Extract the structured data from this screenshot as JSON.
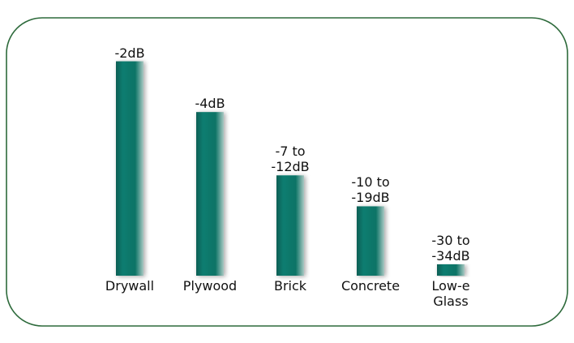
{
  "chart_data": {
    "type": "bar",
    "categories": [
      "Drywall",
      "Plywood",
      "Brick",
      "Concrete",
      "Low-e Glass"
    ],
    "values": [
      [
        -2
      ],
      [
        -4
      ],
      [
        -7,
        -12
      ],
      [
        -10,
        -19
      ],
      [
        -30,
        -34
      ]
    ],
    "value_labels": [
      "-2dB",
      "-4dB",
      "-7 to -12dB",
      "-10 to -19dB",
      "-30 to -34dB"
    ],
    "color": "#0b7a6c",
    "log_scale": true
  }
}
